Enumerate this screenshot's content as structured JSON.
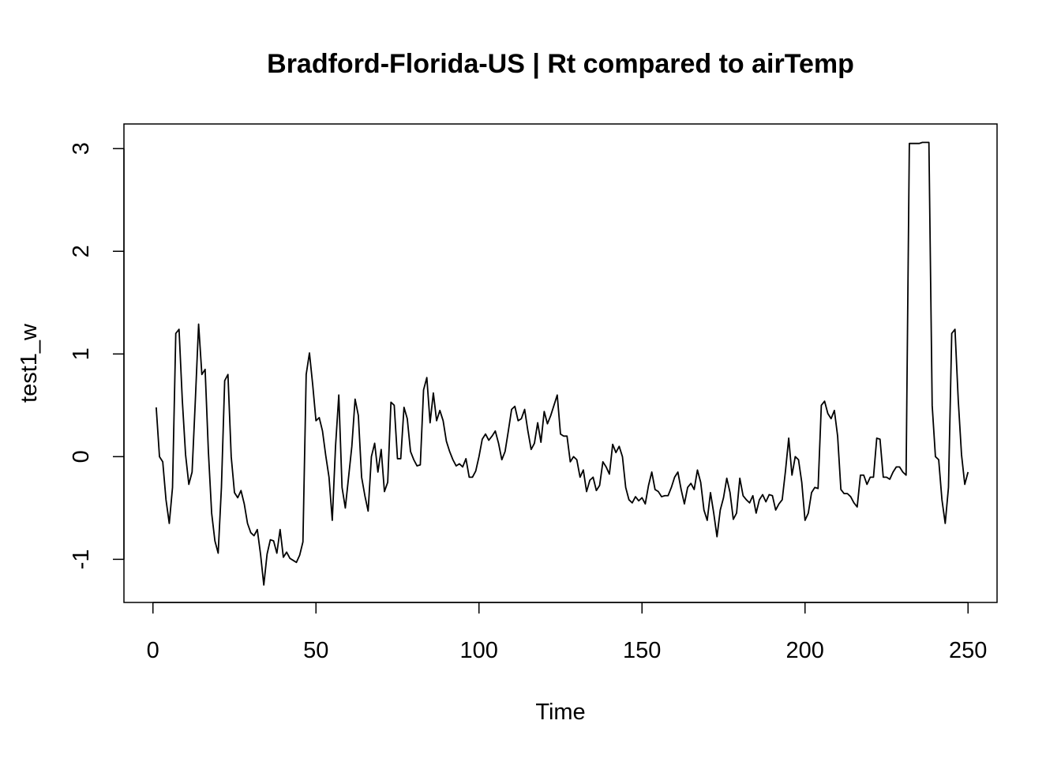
{
  "chart_data": {
    "type": "line",
    "title": "Bradford-Florida-US | Rt compared to airTemp",
    "xlabel": "Time",
    "ylabel": "test1_w",
    "xlim": [
      -8.9,
      258.9
    ],
    "ylim": [
      -1.42,
      3.24
    ],
    "x_ticks": [
      0,
      50,
      100,
      150,
      200,
      250
    ],
    "y_ticks": [
      -1,
      0,
      1,
      2,
      3
    ],
    "x_tick_labels": [
      "0",
      "50",
      "100",
      "150",
      "200",
      "250"
    ],
    "y_tick_labels": [
      "-1",
      "0",
      "1",
      "2",
      "3"
    ],
    "grid": false,
    "legend": "none",
    "line_color": "#000000",
    "x_start": 1,
    "series": [
      {
        "values": [
          0.48,
          0.0,
          -0.05,
          -0.42,
          -0.65,
          -0.3,
          1.2,
          1.24,
          0.55,
          0.02,
          -0.27,
          -0.15,
          0.55,
          1.29,
          0.8,
          0.85,
          0.05,
          -0.55,
          -0.82,
          -0.94,
          -0.3,
          0.74,
          0.8,
          0.0,
          -0.35,
          -0.4,
          -0.33,
          -0.46,
          -0.65,
          -0.74,
          -0.77,
          -0.71,
          -0.95,
          -1.25,
          -0.95,
          -0.81,
          -0.82,
          -0.94,
          -0.71,
          -0.98,
          -0.93,
          -0.99,
          -1.01,
          -1.03,
          -0.96,
          -0.83,
          0.8,
          1.01,
          0.7,
          0.35,
          0.38,
          0.25,
          0.01,
          -0.2,
          -0.62,
          0.1,
          0.6,
          -0.3,
          -0.5,
          -0.2,
          0.1,
          0.56,
          0.4,
          -0.2,
          -0.38,
          -0.53,
          0.0,
          0.13,
          -0.15,
          0.07,
          -0.34,
          -0.25,
          0.53,
          0.5,
          -0.02,
          -0.02,
          0.48,
          0.37,
          0.05,
          -0.03,
          -0.09,
          -0.08,
          0.65,
          0.77,
          0.33,
          0.62,
          0.35,
          0.45,
          0.35,
          0.15,
          0.05,
          -0.03,
          -0.09,
          -0.07,
          -0.1,
          -0.02,
          -0.2,
          -0.2,
          -0.14,
          0.0,
          0.17,
          0.22,
          0.16,
          0.2,
          0.25,
          0.13,
          -0.03,
          0.05,
          0.25,
          0.46,
          0.49,
          0.35,
          0.37,
          0.46,
          0.25,
          0.07,
          0.13,
          0.33,
          0.14,
          0.44,
          0.32,
          0.4,
          0.5,
          0.6,
          0.22,
          0.2,
          0.2,
          -0.05,
          0.0,
          -0.03,
          -0.2,
          -0.13,
          -0.34,
          -0.23,
          -0.2,
          -0.33,
          -0.28,
          -0.05,
          -0.1,
          -0.17,
          0.12,
          0.04,
          0.1,
          0.0,
          -0.3,
          -0.42,
          -0.45,
          -0.39,
          -0.43,
          -0.4,
          -0.46,
          -0.28,
          -0.15,
          -0.32,
          -0.34,
          -0.39,
          -0.38,
          -0.38,
          -0.3,
          -0.2,
          -0.15,
          -0.32,
          -0.46,
          -0.3,
          -0.26,
          -0.32,
          -0.13,
          -0.25,
          -0.52,
          -0.62,
          -0.35,
          -0.55,
          -0.78,
          -0.52,
          -0.4,
          -0.21,
          -0.35,
          -0.61,
          -0.55,
          -0.21,
          -0.38,
          -0.42,
          -0.45,
          -0.38,
          -0.55,
          -0.42,
          -0.37,
          -0.44,
          -0.37,
          -0.38,
          -0.52,
          -0.46,
          -0.42,
          -0.14,
          0.18,
          -0.18,
          0.0,
          -0.03,
          -0.25,
          -0.62,
          -0.55,
          -0.35,
          -0.3,
          -0.31,
          0.5,
          0.54,
          0.42,
          0.37,
          0.45,
          0.2,
          -0.32,
          -0.36,
          -0.36,
          -0.39,
          -0.45,
          -0.49,
          -0.18,
          -0.18,
          -0.27,
          -0.2,
          -0.2,
          0.18,
          0.17,
          -0.2,
          -0.2,
          -0.22,
          -0.15,
          -0.1,
          -0.1,
          -0.15,
          -0.18,
          3.05,
          3.05,
          3.05,
          3.05,
          3.06,
          3.06,
          3.06,
          0.5,
          0.0,
          -0.03,
          -0.42,
          -0.65,
          -0.3,
          1.2,
          1.24,
          0.55,
          0.02,
          -0.27,
          -0.15
        ]
      }
    ]
  }
}
